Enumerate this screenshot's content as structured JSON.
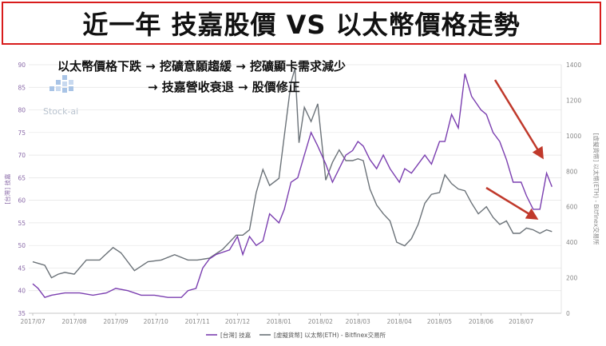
{
  "title": "近一年 技嘉股價 VS 以太幣價格走勢",
  "annotation": {
    "line1": "以太幣價格下跌 → 挖礦意願趨緩 → 挖礦顯卡需求減少",
    "line2": "→ 技嘉營收衰退 → 股價修正"
  },
  "logo": {
    "text": "Stock-ai",
    "icon": "stock-ai-logo-icon"
  },
  "legend": {
    "gigabyte": "[台灣] 技嘉",
    "eth": "[虛擬貨幣] 以太幣(ETH) - Bitfinex交易所"
  },
  "axes": {
    "left_label": "[台灣] 技嘉",
    "right_label": "[虛擬貨幣] 以太幣(ETH) - Bitfinex交易所"
  },
  "colors": {
    "gigabyte": "#7b3fb0",
    "eth": "#6b7278",
    "arrow": "#c0392b",
    "title_border": "#d81c1c"
  },
  "chart_data": {
    "type": "line",
    "xlabel": "",
    "x_ticks": [
      "2017/07",
      "2017/08",
      "2017/09",
      "2017/10",
      "2017/11",
      "2017/12",
      "2018/01",
      "2018/02",
      "2018/03",
      "2018/04",
      "2018/05",
      "2018/06",
      "2018/07"
    ],
    "ylim_left": [
      35,
      90
    ],
    "left_ticks": [
      35,
      40,
      45,
      50,
      55,
      60,
      65,
      70,
      75,
      80,
      85,
      90
    ],
    "ylim_right": [
      0,
      1400
    ],
    "right_ticks": [
      0,
      200,
      400,
      600,
      800,
      1000,
      1200,
      1400
    ],
    "series": [
      {
        "name": "[台灣] 技嘉",
        "axis": "left",
        "values": [
          [
            "2017-07-01",
            41.5
          ],
          [
            "2017-07-05",
            40.5
          ],
          [
            "2017-07-10",
            38.5
          ],
          [
            "2017-07-15",
            39
          ],
          [
            "2017-07-25",
            39.5
          ],
          [
            "2017-08-05",
            39.5
          ],
          [
            "2017-08-15",
            39
          ],
          [
            "2017-08-25",
            39.5
          ],
          [
            "2017-09-01",
            40.5
          ],
          [
            "2017-09-10",
            40
          ],
          [
            "2017-09-20",
            39
          ],
          [
            "2017-09-30",
            39
          ],
          [
            "2017-10-10",
            38.5
          ],
          [
            "2017-10-20",
            38.5
          ],
          [
            "2017-10-25",
            40
          ],
          [
            "2017-10-31",
            40.5
          ],
          [
            "2017-11-05",
            45
          ],
          [
            "2017-11-10",
            47
          ],
          [
            "2017-11-15",
            48
          ],
          [
            "2017-11-25",
            49
          ],
          [
            "2017-12-01",
            52
          ],
          [
            "2017-12-05",
            48
          ],
          [
            "2017-12-10",
            52
          ],
          [
            "2017-12-15",
            50
          ],
          [
            "2017-12-20",
            51
          ],
          [
            "2017-12-25",
            57
          ],
          [
            "2018-01-01",
            55
          ],
          [
            "2018-01-05",
            58
          ],
          [
            "2018-01-10",
            64
          ],
          [
            "2018-01-15",
            65
          ],
          [
            "2018-01-20",
            70
          ],
          [
            "2018-01-25",
            75
          ],
          [
            "2018-01-30",
            72
          ],
          [
            "2018-02-05",
            68
          ],
          [
            "2018-02-10",
            64
          ],
          [
            "2018-02-15",
            67
          ],
          [
            "2018-02-20",
            70
          ],
          [
            "2018-02-25",
            71
          ],
          [
            "2018-03-01",
            73
          ],
          [
            "2018-03-05",
            72
          ],
          [
            "2018-03-10",
            69
          ],
          [
            "2018-03-15",
            67
          ],
          [
            "2018-03-20",
            70
          ],
          [
            "2018-03-25",
            67
          ],
          [
            "2018-04-01",
            64
          ],
          [
            "2018-04-05",
            67
          ],
          [
            "2018-04-10",
            66
          ],
          [
            "2018-04-15",
            68
          ],
          [
            "2018-04-20",
            70
          ],
          [
            "2018-04-25",
            68
          ],
          [
            "2018-05-01",
            73
          ],
          [
            "2018-05-05",
            73
          ],
          [
            "2018-05-10",
            79
          ],
          [
            "2018-05-15",
            76
          ],
          [
            "2018-05-20",
            88
          ],
          [
            "2018-05-25",
            83
          ],
          [
            "2018-06-01",
            80
          ],
          [
            "2018-06-05",
            79
          ],
          [
            "2018-06-10",
            75
          ],
          [
            "2018-06-15",
            73
          ],
          [
            "2018-06-20",
            69
          ],
          [
            "2018-06-25",
            64
          ],
          [
            "2018-07-01",
            64
          ],
          [
            "2018-07-05",
            61
          ],
          [
            "2018-07-10",
            58
          ],
          [
            "2018-07-15",
            58
          ],
          [
            "2018-07-20",
            66
          ],
          [
            "2018-07-24",
            63
          ]
        ]
      },
      {
        "name": "[虛擬貨幣] 以太幣(ETH) - Bitfinex交易所",
        "axis": "right",
        "values": [
          [
            "2017-07-01",
            290
          ],
          [
            "2017-07-10",
            270
          ],
          [
            "2017-07-15",
            200
          ],
          [
            "2017-07-20",
            220
          ],
          [
            "2017-07-25",
            230
          ],
          [
            "2017-08-01",
            220
          ],
          [
            "2017-08-10",
            300
          ],
          [
            "2017-08-20",
            300
          ],
          [
            "2017-08-30",
            370
          ],
          [
            "2017-09-05",
            340
          ],
          [
            "2017-09-15",
            240
          ],
          [
            "2017-09-25",
            290
          ],
          [
            "2017-10-05",
            300
          ],
          [
            "2017-10-15",
            330
          ],
          [
            "2017-10-25",
            300
          ],
          [
            "2017-11-01",
            300
          ],
          [
            "2017-11-10",
            310
          ],
          [
            "2017-11-20",
            360
          ],
          [
            "2017-11-30",
            440
          ],
          [
            "2017-12-05",
            440
          ],
          [
            "2017-12-10",
            470
          ],
          [
            "2017-12-15",
            680
          ],
          [
            "2017-12-20",
            810
          ],
          [
            "2017-12-25",
            720
          ],
          [
            "2018-01-01",
            760
          ],
          [
            "2018-01-05",
            1000
          ],
          [
            "2018-01-10",
            1300
          ],
          [
            "2018-01-13",
            1380
          ],
          [
            "2018-01-16",
            960
          ],
          [
            "2018-01-20",
            1160
          ],
          [
            "2018-01-25",
            1080
          ],
          [
            "2018-01-30",
            1180
          ],
          [
            "2018-02-05",
            750
          ],
          [
            "2018-02-10",
            850
          ],
          [
            "2018-02-15",
            920
          ],
          [
            "2018-02-20",
            860
          ],
          [
            "2018-02-25",
            860
          ],
          [
            "2018-03-01",
            870
          ],
          [
            "2018-03-05",
            860
          ],
          [
            "2018-03-10",
            700
          ],
          [
            "2018-03-15",
            610
          ],
          [
            "2018-03-20",
            560
          ],
          [
            "2018-03-25",
            520
          ],
          [
            "2018-03-30",
            400
          ],
          [
            "2018-04-05",
            380
          ],
          [
            "2018-04-10",
            420
          ],
          [
            "2018-04-15",
            500
          ],
          [
            "2018-04-20",
            620
          ],
          [
            "2018-04-25",
            670
          ],
          [
            "2018-05-01",
            680
          ],
          [
            "2018-05-05",
            780
          ],
          [
            "2018-05-10",
            730
          ],
          [
            "2018-05-15",
            700
          ],
          [
            "2018-05-20",
            690
          ],
          [
            "2018-05-25",
            620
          ],
          [
            "2018-05-30",
            560
          ],
          [
            "2018-06-05",
            600
          ],
          [
            "2018-06-10",
            540
          ],
          [
            "2018-06-15",
            500
          ],
          [
            "2018-06-20",
            520
          ],
          [
            "2018-06-25",
            450
          ],
          [
            "2018-06-30",
            450
          ],
          [
            "2018-07-05",
            480
          ],
          [
            "2018-07-10",
            470
          ],
          [
            "2018-07-15",
            450
          ],
          [
            "2018-07-20",
            470
          ],
          [
            "2018-07-24",
            460
          ]
        ]
      }
    ],
    "grid": true,
    "legend_position": "bottom-center"
  }
}
